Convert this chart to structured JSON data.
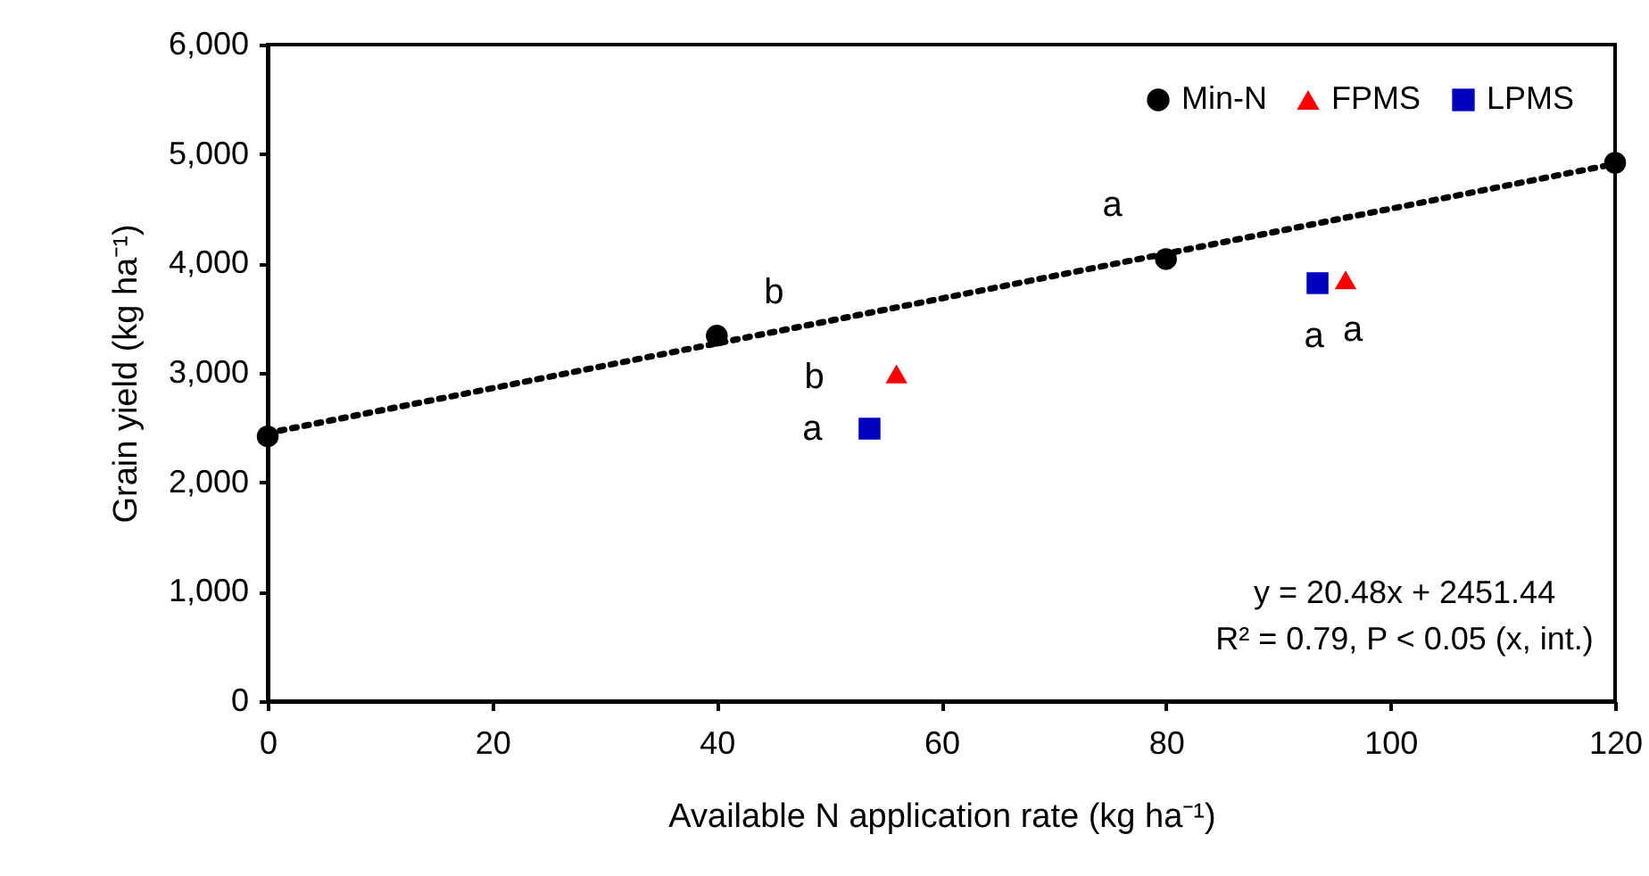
{
  "chart_data": {
    "type": "scatter",
    "xlabel": "Available N application rate (kg ha⁻¹)",
    "ylabel": "Grain yield (kg ha⁻¹)",
    "xlim": [
      0,
      120
    ],
    "xticks": [
      0,
      20,
      40,
      60,
      80,
      100,
      120
    ],
    "ylim": [
      0,
      6000
    ],
    "yticks": [
      {
        "value": 0,
        "label": "0"
      },
      {
        "value": 1000,
        "label": "1,000"
      },
      {
        "value": 2000,
        "label": "2,000"
      },
      {
        "value": 3000,
        "label": "3,000"
      },
      {
        "value": 4000,
        "label": "4,000"
      },
      {
        "value": 5000,
        "label": "5,000"
      },
      {
        "value": 6000,
        "label": "6,000"
      }
    ],
    "grid": false,
    "legend": "top right",
    "series": [
      {
        "name": "Min-N",
        "color": "#000000",
        "marker": "circle",
        "x": [
          0,
          40,
          80,
          120
        ],
        "values": [
          2420,
          3340,
          4040,
          4920
        ]
      },
      {
        "name": "FPMS",
        "color": "#ff0000",
        "marker": "triangle",
        "x": [
          56,
          96
        ],
        "values": [
          2990,
          3850
        ]
      },
      {
        "name": "LPMS",
        "color": "#0000c0",
        "marker": "square",
        "x": [
          53.6,
          93.5
        ],
        "values": [
          2490,
          3820
        ]
      },
      {
        "type": "line",
        "color": "#000000",
        "line_style": "dotted",
        "marker": "none",
        "x": [
          0,
          120
        ],
        "values": [
          2450,
          4910
        ]
      }
    ],
    "annotations": [
      {
        "text": "b",
        "x": 40,
        "y": 3340
      },
      {
        "text": "a",
        "x": 80,
        "y": 4040
      },
      {
        "text": "b",
        "x": 56,
        "y": 2990
      },
      {
        "text": "a",
        "x": 53.6,
        "y": 2490
      },
      {
        "text": "a",
        "x": 93.5,
        "y": 3820
      },
      {
        "text": "a",
        "x": 96,
        "y": 3850
      },
      "y = 20.48x + 2451.44",
      "R² = 0.79, P < 0.05 (x, int.)"
    ]
  }
}
